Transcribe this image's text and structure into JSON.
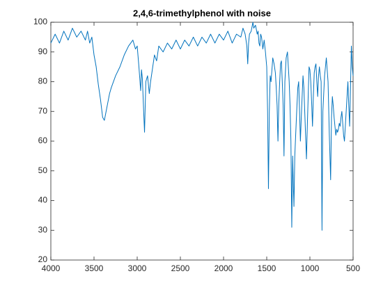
{
  "chart_data": {
    "type": "line",
    "title": "2,4,6-trimethylphenol with noise",
    "x": [
      4000,
      3950,
      3900,
      3850,
      3800,
      3750,
      3700,
      3650,
      3600,
      3575,
      3550,
      3525,
      3500,
      3475,
      3450,
      3425,
      3400,
      3380,
      3360,
      3340,
      3320,
      3300,
      3250,
      3200,
      3150,
      3100,
      3050,
      3020,
      3000,
      2980,
      2960,
      2950,
      2940,
      2925,
      2915,
      2900,
      2880,
      2860,
      2845,
      2830,
      2800,
      2775,
      2750,
      2700,
      2650,
      2600,
      2550,
      2500,
      2450,
      2400,
      2350,
      2300,
      2250,
      2200,
      2150,
      2100,
      2050,
      2000,
      1950,
      1900,
      1850,
      1800,
      1775,
      1750,
      1730,
      1720,
      1710,
      1700,
      1680,
      1660,
      1650,
      1630,
      1610,
      1600,
      1590,
      1580,
      1570,
      1560,
      1545,
      1530,
      1515,
      1500,
      1490,
      1480,
      1470,
      1460,
      1450,
      1440,
      1430,
      1415,
      1400,
      1390,
      1380,
      1370,
      1360,
      1350,
      1340,
      1330,
      1320,
      1310,
      1300,
      1290,
      1275,
      1260,
      1250,
      1240,
      1230,
      1220,
      1210,
      1200,
      1192,
      1185,
      1175,
      1165,
      1150,
      1140,
      1130,
      1120,
      1110,
      1100,
      1090,
      1080,
      1070,
      1060,
      1050,
      1040,
      1030,
      1020,
      1010,
      1000,
      990,
      980,
      970,
      960,
      950,
      940,
      930,
      920,
      910,
      900,
      890,
      880,
      870,
      860,
      850,
      840,
      830,
      820,
      810,
      800,
      790,
      775,
      760,
      750,
      740,
      730,
      720,
      710,
      700,
      690,
      680,
      670,
      660,
      650,
      640,
      630,
      620,
      610,
      600,
      590,
      580,
      570,
      560,
      550,
      540,
      530,
      520,
      510,
      500
    ],
    "values": [
      93,
      96,
      93,
      97,
      94,
      98,
      95,
      97,
      94,
      97,
      93,
      95,
      89,
      85,
      79,
      74,
      68,
      67,
      70,
      73,
      76,
      78,
      82,
      85,
      89,
      92,
      94,
      91,
      92,
      85,
      77,
      84,
      81,
      70,
      63,
      80,
      82,
      76,
      80,
      83,
      89,
      87,
      92,
      90,
      93,
      91,
      94,
      91,
      94,
      92,
      95,
      92,
      95,
      93,
      96,
      93,
      96,
      94,
      97,
      93,
      96,
      95,
      98,
      96,
      92,
      86,
      93,
      96,
      97,
      100,
      98,
      99,
      96,
      97,
      93,
      92,
      96,
      95,
      91,
      94,
      90,
      85,
      70,
      44,
      70,
      82,
      80,
      84,
      88,
      86,
      83,
      78,
      72,
      60,
      73,
      80,
      86,
      87,
      80,
      72,
      55,
      80,
      88,
      90,
      85,
      80,
      72,
      60,
      31,
      55,
      45,
      38,
      55,
      62,
      72,
      78,
      80,
      70,
      60,
      68,
      75,
      82,
      78,
      70,
      62,
      54,
      65,
      75,
      85,
      84,
      80,
      73,
      65,
      75,
      83,
      85,
      86,
      80,
      75,
      82,
      85,
      82,
      80,
      30,
      70,
      76,
      82,
      85,
      88,
      84,
      80,
      62,
      47,
      68,
      75,
      72,
      68,
      65,
      62,
      64,
      63,
      64,
      66,
      65,
      68,
      70,
      66,
      62,
      60,
      65,
      70,
      75,
      80,
      72,
      65,
      78,
      92,
      85,
      82
    ],
    "color": "#0072bd",
    "xlim": [
      4000,
      500
    ],
    "xticks": [
      4000,
      3500,
      3000,
      2500,
      2000,
      1500,
      1000,
      500
    ],
    "ylim": [
      20,
      100
    ],
    "yticks": [
      20,
      30,
      40,
      50,
      60,
      70,
      80,
      90,
      100
    ]
  }
}
